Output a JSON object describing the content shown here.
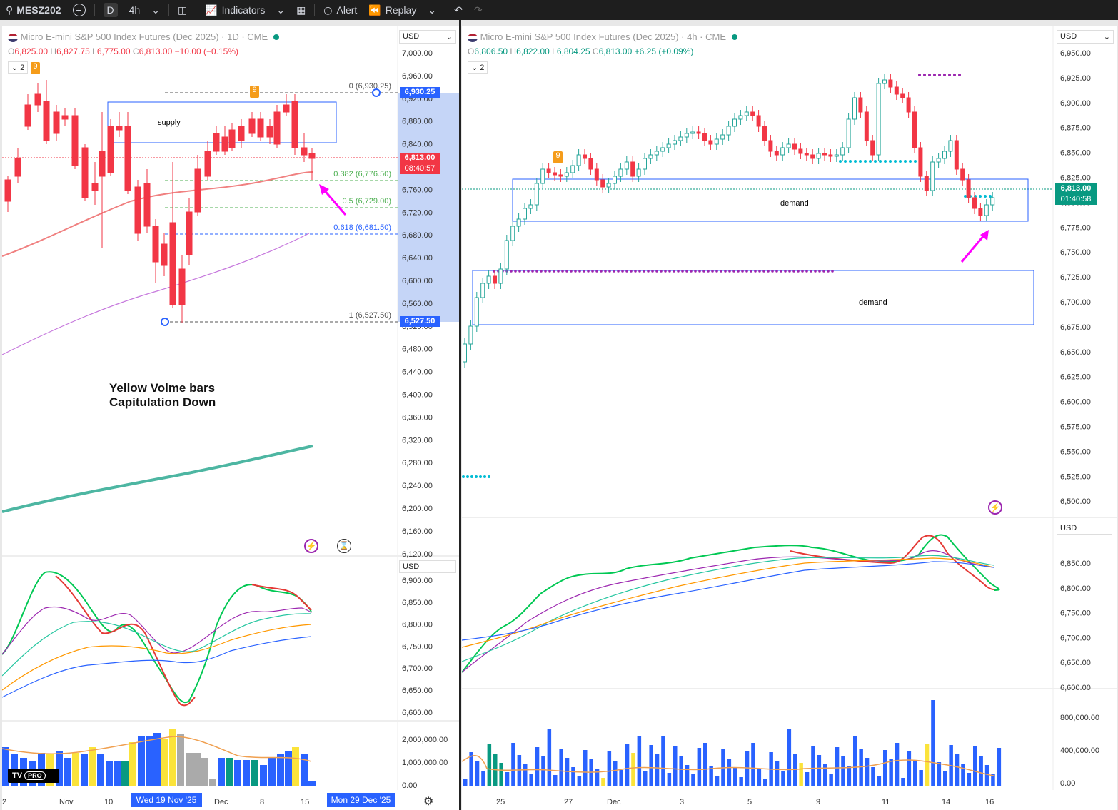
{
  "toolbar": {
    "symbol": "MESZ202",
    "interval_d": "D",
    "interval_4h": "4h",
    "indicators": "Indicators",
    "alert": "Alert",
    "replay": "Replay"
  },
  "left": {
    "title": "Micro E-mini S&P 500 Index Futures (Dec 2025) · 1D · CME",
    "ohlc": {
      "o": "6,825.00",
      "h": "6,827.75",
      "l": "6,775.00",
      "c": "6,813.00",
      "chg": "−10.00 (−0.15%)"
    },
    "layer_count": "2",
    "currency": "USD",
    "price_ticks": [
      "7,000.00",
      "6,960.00",
      "6,920.00",
      "6,880.00",
      "6,840.00",
      "6,800.00",
      "6,760.00",
      "6,720.00",
      "6,680.00",
      "6,640.00",
      "6,600.00",
      "6,560.00",
      "6,520.00",
      "6,480.00",
      "6,440.00",
      "6,400.00",
      "6,360.00",
      "6,320.00",
      "6,280.00",
      "6,240.00",
      "6,200.00",
      "6,160.00",
      "6,120.00"
    ],
    "fib": [
      {
        "label": "0 (6,930.25)"
      },
      {
        "label": "0.382 (6,776.50)"
      },
      {
        "label": "0.5 (6,729.00)"
      },
      {
        "label": "0.618 (6,681.50)"
      },
      {
        "label": "1 (6,527.50)"
      }
    ],
    "tag_high": "6,930.25",
    "tag_low": "6,527.50",
    "tag_last": "6,813.00",
    "tag_timer": "08:40:57",
    "supply_label": "supply",
    "annotation_line1": "Yellow Volme bars",
    "annotation_line2": "Capitulation Down",
    "osc_currency": "USD",
    "osc_ticks": [
      "6,900.00",
      "6,850.00",
      "6,800.00",
      "6,750.00",
      "6,700.00",
      "6,650.00",
      "6,600.00"
    ],
    "vol_ticks": [
      "2,000,000.00",
      "1,000,000.00",
      "0.00"
    ],
    "x_labels": [
      "2",
      "Nov",
      "10",
      "Dec",
      "8",
      "15"
    ],
    "x_cursor": "Wed 19 Nov '25",
    "x_cursor2": "Mon 29 Dec '25",
    "td_seq": "9",
    "logo_text": "PRO"
  },
  "right": {
    "title": "Micro E-mini S&P 500 Index Futures (Dec 2025) · 4h · CME",
    "ohlc": {
      "o": "6,806.50",
      "h": "6,822.00",
      "l": "6,804.25",
      "c": "6,813.00",
      "chg": "+6.25 (+0.09%)"
    },
    "layer_count": "2",
    "currency": "USD",
    "price_ticks": [
      "6,950.00",
      "6,925.00",
      "6,900.00",
      "6,875.00",
      "6,850.00",
      "6,825.00",
      "6,800.00",
      "6,775.00",
      "6,750.00",
      "6,725.00",
      "6,700.00",
      "6,675.00",
      "6,650.00",
      "6,625.00",
      "6,600.00",
      "6,575.00",
      "6,550.00",
      "6,525.00",
      "6,500.00"
    ],
    "tag_last": "6,813.00",
    "tag_timer": "01:40:58",
    "demand_label_1": "demand",
    "demand_label_2": "demand",
    "osc_currency": "USD",
    "osc_ticks": [
      "6,850.00",
      "6,800.00",
      "6,750.00",
      "6,700.00",
      "6,650.00",
      "6,600.00"
    ],
    "vol_ticks": [
      "800,000.00",
      "400,000.00",
      "0.00"
    ],
    "x_labels": [
      "25",
      "27",
      "Dec",
      "3",
      "5",
      "9",
      "11",
      "14",
      "16"
    ],
    "td_seq": "9"
  },
  "colors": {
    "up": "#26a69a",
    "down": "#f23645",
    "fib_green": "#4caf50",
    "fib_blue": "#2962ff",
    "magenta_arrow": "#ff00ff",
    "tag_blue": "#2962ff",
    "tag_red": "#f23645",
    "tag_green": "#089981"
  }
}
